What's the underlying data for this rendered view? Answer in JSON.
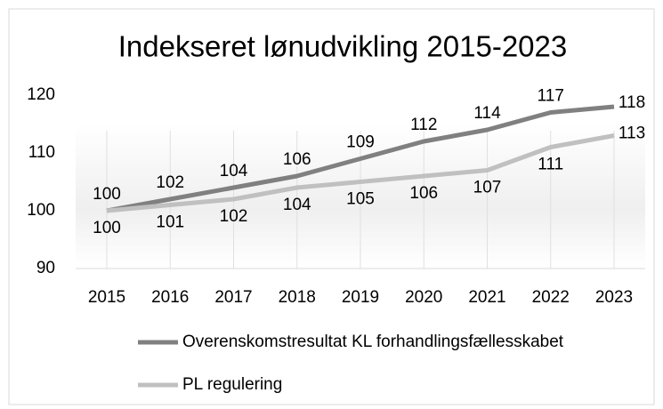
{
  "chart_data": {
    "type": "line",
    "title": "Indekseret lønudvikling 2015-2023",
    "categories": [
      "2015",
      "2016",
      "2017",
      "2018",
      "2019",
      "2020",
      "2021",
      "2022",
      "2023"
    ],
    "series": [
      {
        "name": "Overenskomstresultat KL forhandlingsfællesskabet",
        "color": "#808080",
        "values": [
          100,
          102,
          104,
          106,
          109,
          112,
          114,
          117,
          118
        ]
      },
      {
        "name": "PL regulering",
        "color": "#c0c0c0",
        "values": [
          100,
          101,
          102,
          104,
          105,
          106,
          107,
          111,
          113
        ]
      }
    ],
    "ylim": [
      90,
      120
    ],
    "yticks": [
      90,
      100,
      110,
      120
    ],
    "grid": "vertical",
    "legend": "bottom"
  }
}
